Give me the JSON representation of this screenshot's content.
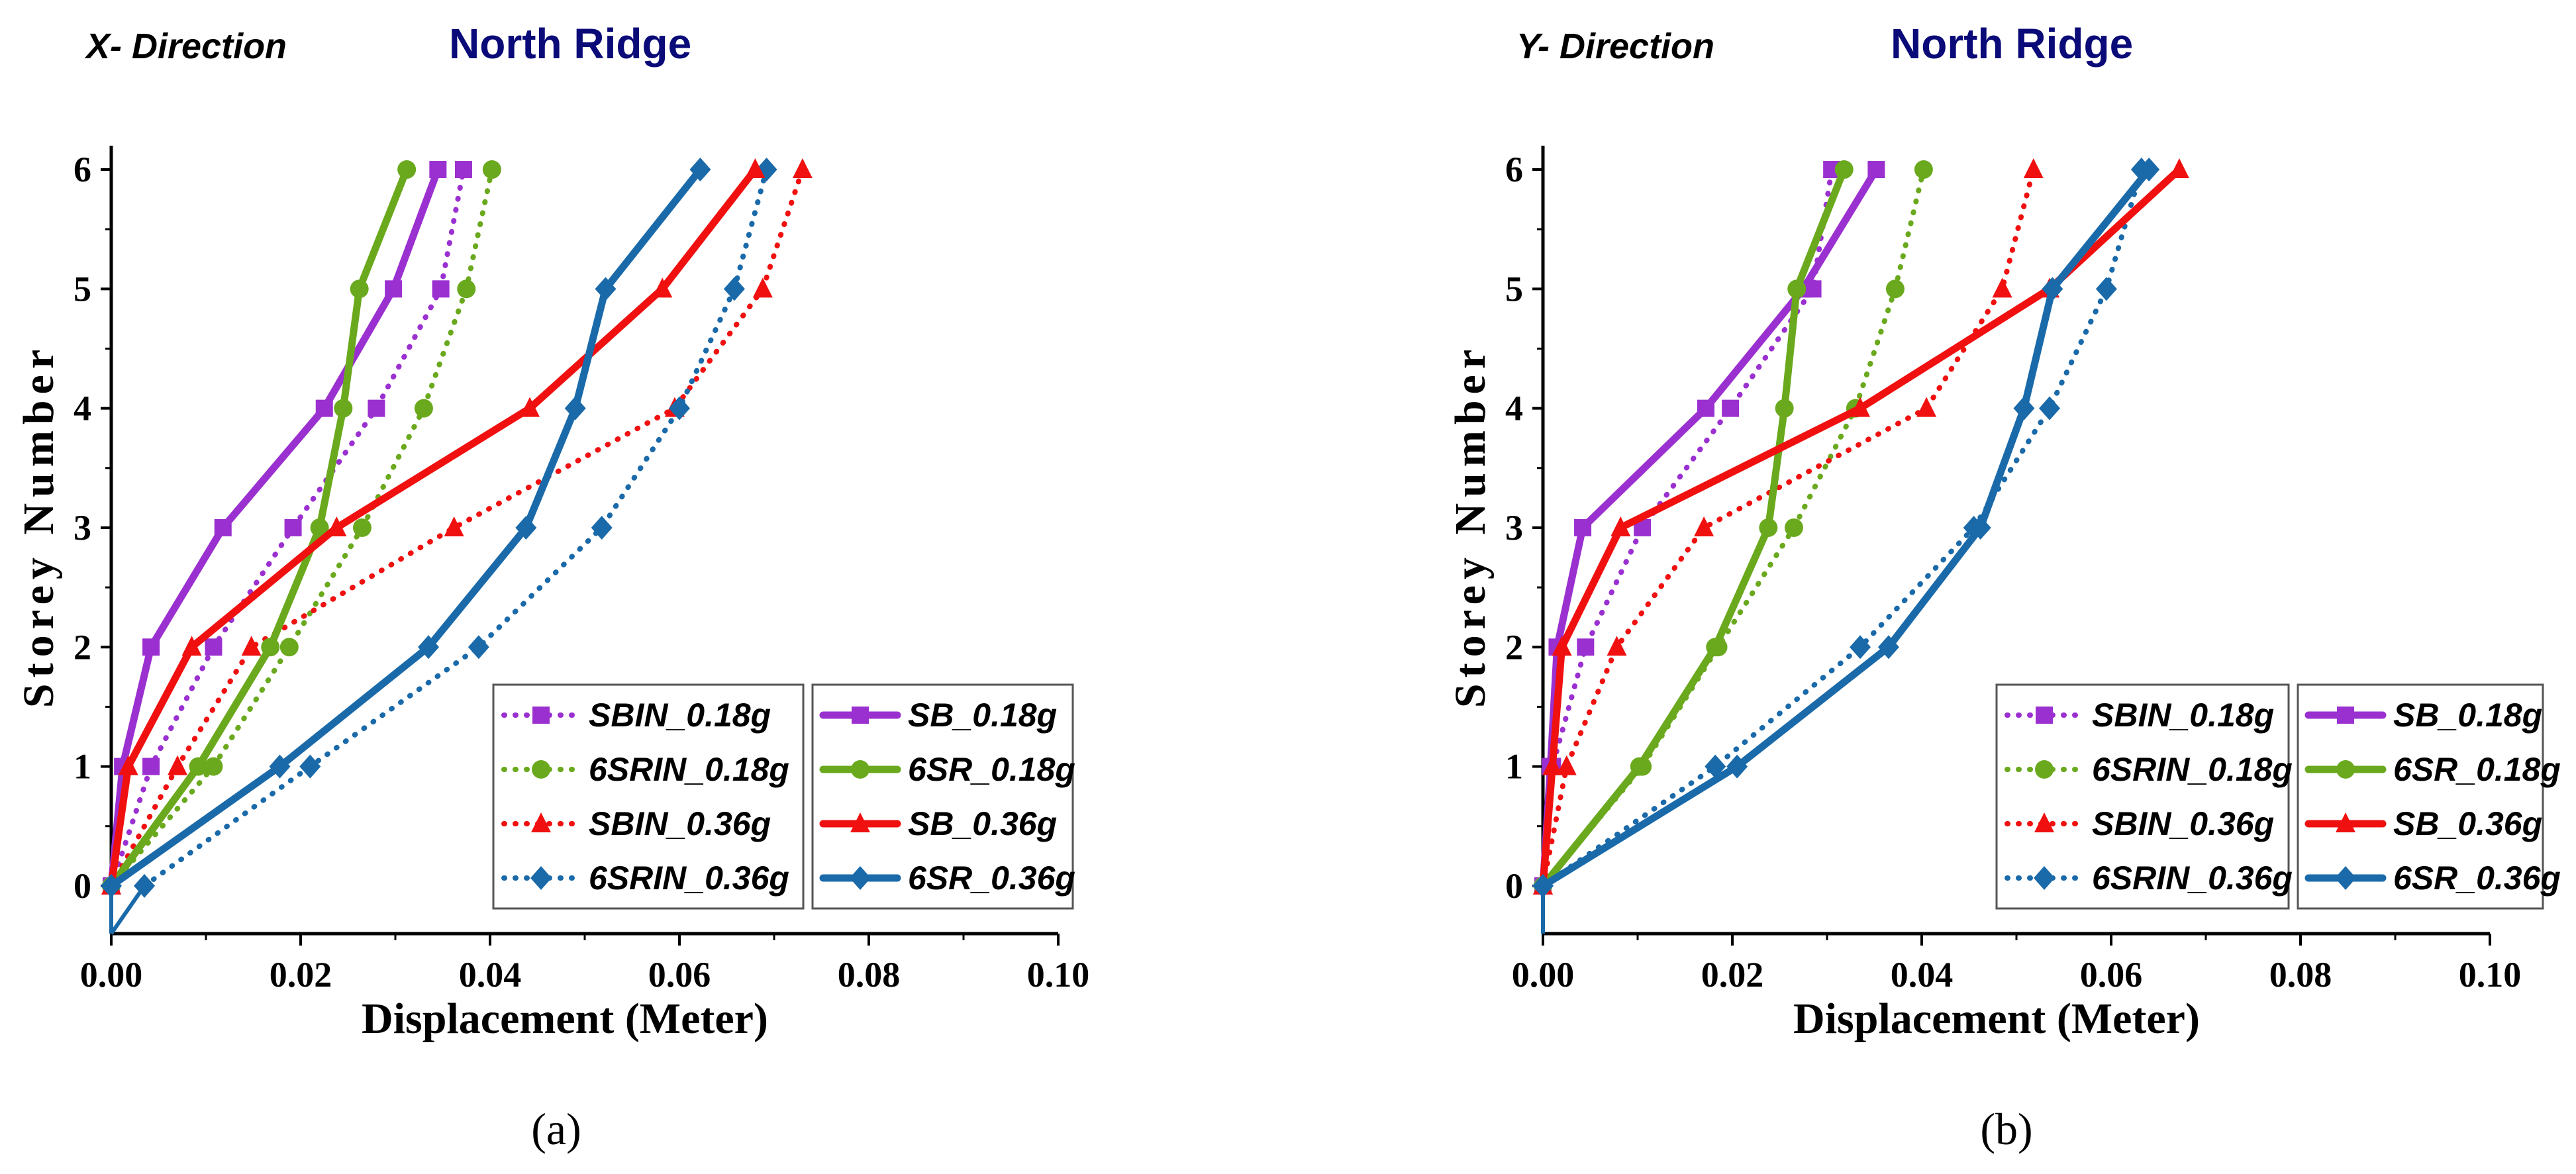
{
  "chart_data": [
    {
      "type": "line",
      "direction_label": "X- Direction",
      "location_label": "North Ridge",
      "caption": "(a)",
      "xlabel": "Displacement (Meter)",
      "ylabel": "Storey Number",
      "xlim": [
        0,
        0.1
      ],
      "ylim": [
        -0.4,
        6.1
      ],
      "xticks": [
        "0.00",
        "0.02",
        "0.04",
        "0.06",
        "0.08",
        "0.10"
      ],
      "yticks": [
        "0",
        "1",
        "2",
        "3",
        "4",
        "5",
        "6"
      ],
      "legend_position": "bottom-right",
      "storeys": [
        0,
        1,
        2,
        3,
        4,
        5,
        6
      ],
      "series": [
        {
          "name": "SBIN_0.18g",
          "color": "#9b30d0",
          "style": "dotted",
          "marker": "square",
          "x": [
            0.0,
            0.0042,
            0.0108,
            0.0192,
            0.028,
            0.0348,
            0.0372
          ]
        },
        {
          "name": "6SRIN_0.18g",
          "color": "#6aa91d",
          "style": "dotted",
          "marker": "circle",
          "x": [
            0.0,
            0.0108,
            0.0188,
            0.0265,
            0.033,
            0.0375,
            0.0402
          ]
        },
        {
          "name": "SBIN_0.36g",
          "color": "#f01010",
          "style": "dotted",
          "marker": "triangle",
          "x": [
            0.0,
            0.007,
            0.0148,
            0.0362,
            0.0595,
            0.0688,
            0.073
          ]
        },
        {
          "name": "6SRIN_0.36g",
          "color": "#1a6aaa",
          "style": "dotted",
          "marker": "diamond",
          "x": [
            0.0035,
            0.021,
            0.0388,
            0.0518,
            0.06,
            0.0658,
            0.0692
          ]
        },
        {
          "name": "SB_0.18g",
          "color": "#9b30d0",
          "style": "solid",
          "marker": "square",
          "x": [
            0.0,
            0.0012,
            0.0042,
            0.0118,
            0.0225,
            0.0298,
            0.0345
          ]
        },
        {
          "name": "6SR_0.18g",
          "color": "#6aa91d",
          "style": "solid",
          "marker": "circle",
          "x": [
            0.0,
            0.0092,
            0.0168,
            0.022,
            0.0245,
            0.0262,
            0.0312
          ]
        },
        {
          "name": "SB_0.36g",
          "color": "#f01010",
          "style": "solid",
          "marker": "triangle",
          "x": [
            0.0,
            0.0018,
            0.0085,
            0.0238,
            0.0442,
            0.0582,
            0.068
          ]
        },
        {
          "name": "6SR_0.36g",
          "color": "#1a6aaa",
          "style": "solid",
          "marker": "diamond",
          "x": [
            0.0,
            0.0178,
            0.0335,
            0.0438,
            0.049,
            0.0522,
            0.0622
          ]
        }
      ]
    },
    {
      "type": "line",
      "direction_label": "Y- Direction",
      "location_label": "North Ridge",
      "caption": "(b)",
      "xlabel": "Displacement (Meter)",
      "ylabel": "Storey Number",
      "xlim": [
        0,
        0.1
      ],
      "ylim": [
        -0.4,
        6.1
      ],
      "xticks": [
        "0.00",
        "0.02",
        "0.04",
        "0.06",
        "0.08",
        "0.10"
      ],
      "yticks": [
        "0",
        "1",
        "2",
        "3",
        "4",
        "5",
        "6"
      ],
      "legend_position": "bottom-right",
      "storeys": [
        0,
        1,
        2,
        3,
        4,
        5,
        6
      ],
      "series": [
        {
          "name": "SBIN_0.18g",
          "color": "#9b30d0",
          "style": "dotted",
          "marker": "square",
          "x": [
            0.0,
            0.001,
            0.0045,
            0.0105,
            0.0198,
            0.0285,
            0.0305
          ]
        },
        {
          "name": "6SRIN_0.18g",
          "color": "#6aa91d",
          "style": "dotted",
          "marker": "circle",
          "x": [
            0.0,
            0.0105,
            0.0185,
            0.0265,
            0.033,
            0.0372,
            0.0402
          ]
        },
        {
          "name": "SBIN_0.36g",
          "color": "#f01010",
          "style": "dotted",
          "marker": "triangle",
          "x": [
            0.0,
            0.0025,
            0.0078,
            0.017,
            0.0405,
            0.0485,
            0.0518
          ]
        },
        {
          "name": "6SRIN_0.36g",
          "color": "#1a6aaa",
          "style": "dotted",
          "marker": "diamond",
          "x": [
            0.0,
            0.0182,
            0.0335,
            0.0455,
            0.0535,
            0.0595,
            0.0632
          ]
        },
        {
          "name": "SB_0.18g",
          "color": "#9b30d0",
          "style": "solid",
          "marker": "square",
          "x": [
            0.0,
            0.0008,
            0.0015,
            0.0042,
            0.0172,
            0.0275,
            0.0352
          ]
        },
        {
          "name": "6SR_0.18g",
          "color": "#6aa91d",
          "style": "solid",
          "marker": "circle",
          "x": [
            0.0,
            0.0102,
            0.0182,
            0.0238,
            0.0255,
            0.0268,
            0.0318
          ]
        },
        {
          "name": "SB_0.36g",
          "color": "#f01010",
          "style": "solid",
          "marker": "triangle",
          "x": [
            0.0,
            0.001,
            0.002,
            0.0082,
            0.0335,
            0.0535,
            0.0672
          ]
        },
        {
          "name": "6SR_0.36g",
          "color": "#1a6aaa",
          "style": "solid",
          "marker": "diamond",
          "x": [
            0.0,
            0.0205,
            0.0365,
            0.0462,
            0.0508,
            0.0538,
            0.064
          ]
        }
      ]
    }
  ]
}
